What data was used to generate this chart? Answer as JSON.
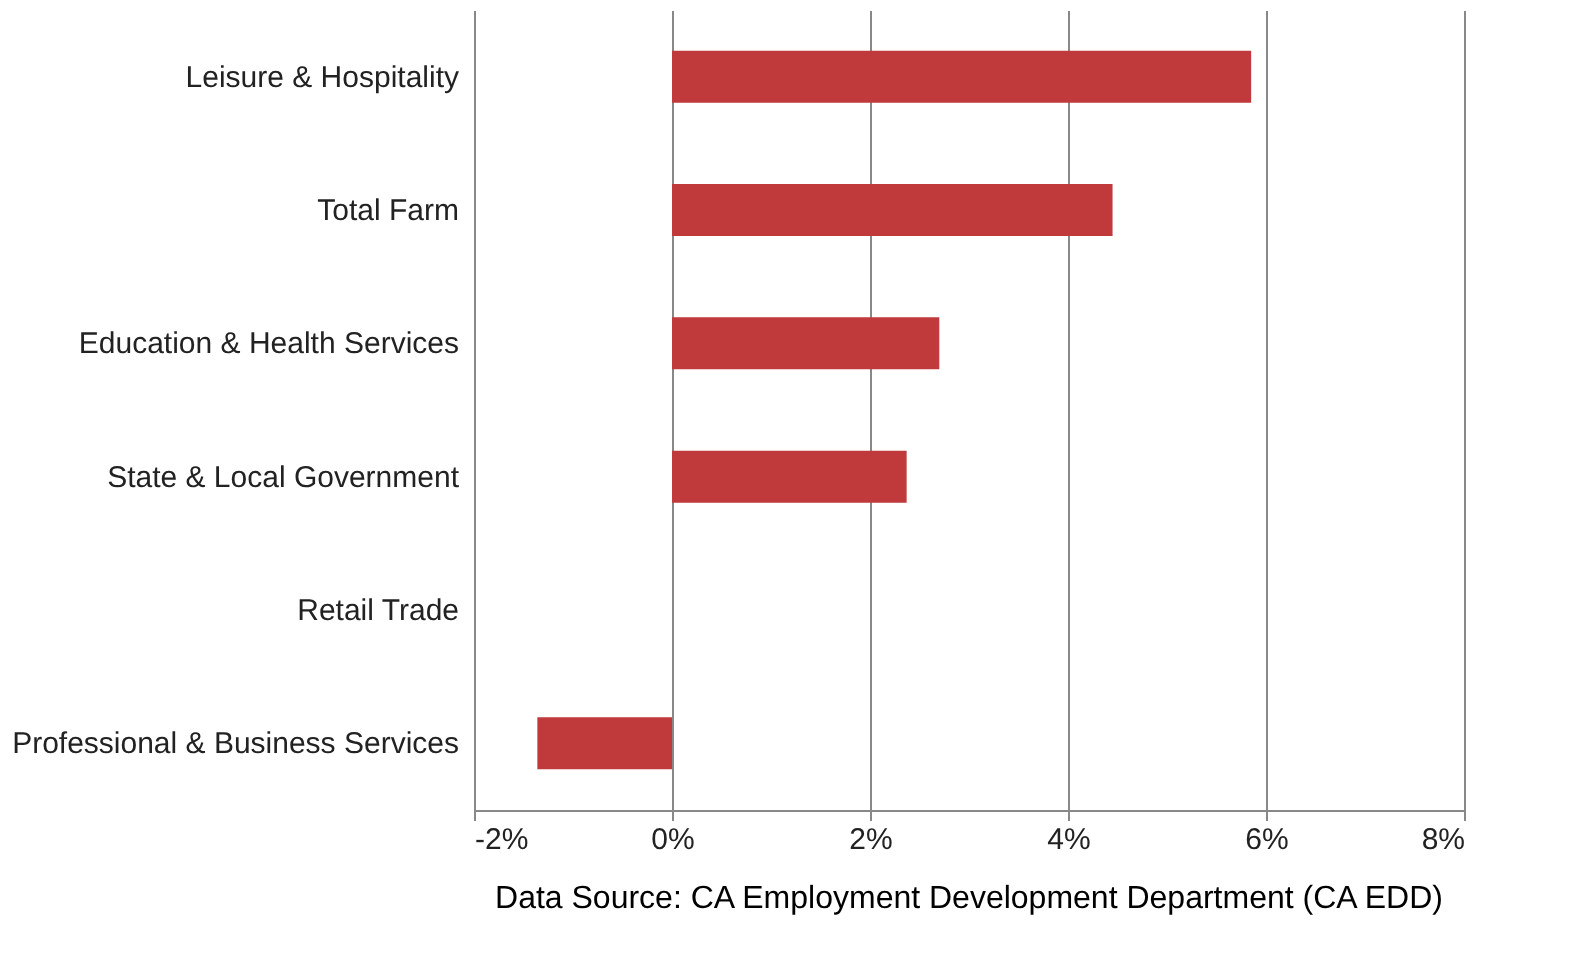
{
  "chart_data": {
    "type": "bar",
    "orientation": "horizontal",
    "categories": [
      "Leisure & Hospitality",
      "Total Farm",
      "Education & Health Services",
      "State & Local Government",
      "Retail Trade",
      "Professional & Business Services"
    ],
    "values": [
      5.85,
      4.45,
      2.7,
      2.37,
      0,
      -1.36
    ],
    "color": "#c0393b",
    "xlim": [
      -2,
      8
    ],
    "xticks": [
      {
        "value": -2,
        "label": "-2%"
      },
      {
        "value": 0,
        "label": "0%"
      },
      {
        "value": 2,
        "label": "2%"
      },
      {
        "value": 4,
        "label": "4%"
      },
      {
        "value": 6,
        "label": "6%"
      },
      {
        "value": 8,
        "label": "8%"
      }
    ],
    "grid": "x",
    "annotations": [
      "Data Source: CA Employment Development Department (CA EDD)"
    ]
  }
}
